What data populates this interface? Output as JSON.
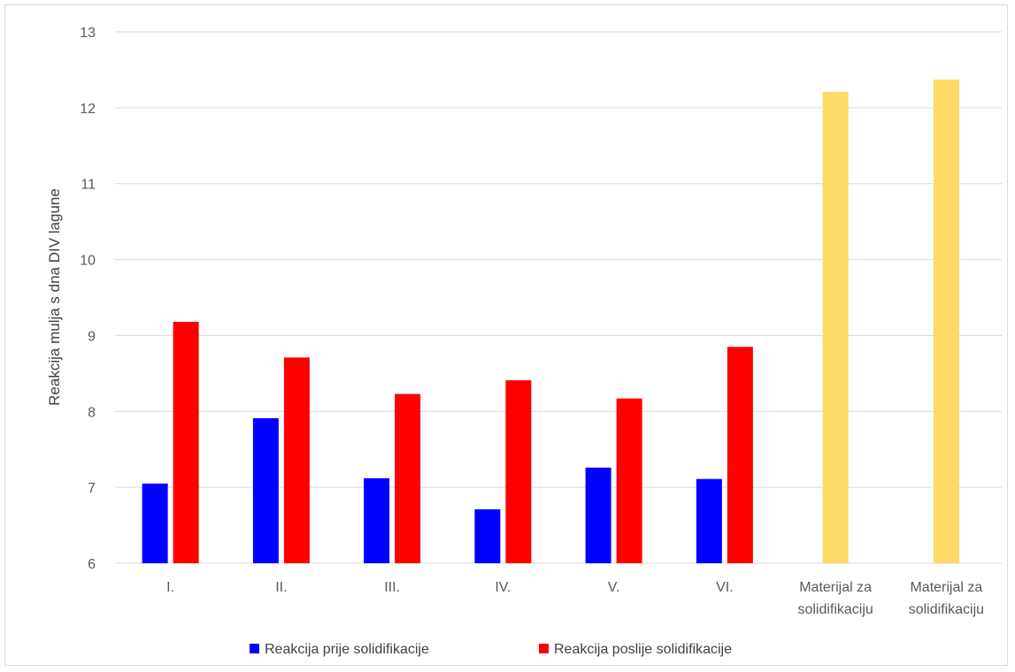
{
  "chart_data": {
    "type": "bar",
    "title": "",
    "xlabel": "",
    "ylabel": "Reakcija mulja s dna DIV lagune",
    "ylim": [
      6,
      13
    ],
    "yticks": [
      6,
      7,
      8,
      9,
      10,
      11,
      12,
      13
    ],
    "grid": true,
    "legend_position": "bottom",
    "categories": [
      [
        "I."
      ],
      [
        "II."
      ],
      [
        "III."
      ],
      [
        "IV."
      ],
      [
        "V."
      ],
      [
        "VI."
      ],
      [
        "Materijal za",
        "solidifikaciju"
      ],
      [
        "Materijal za",
        "solidifikaciju"
      ]
    ],
    "series": [
      {
        "name": "Reakcija prije solidifikacije",
        "color": "#0000ff",
        "values": [
          7.05,
          7.91,
          7.12,
          6.71,
          7.26,
          7.11,
          null,
          null
        ]
      },
      {
        "name": "Reakcija poslije solidifikacije",
        "color": "#ff0000",
        "values": [
          9.18,
          8.71,
          8.23,
          8.41,
          8.17,
          8.85,
          null,
          null
        ]
      }
    ],
    "material_bars": {
      "color": "#ffd966",
      "values": [
        null,
        null,
        null,
        null,
        null,
        null,
        12.21,
        12.37
      ]
    }
  }
}
